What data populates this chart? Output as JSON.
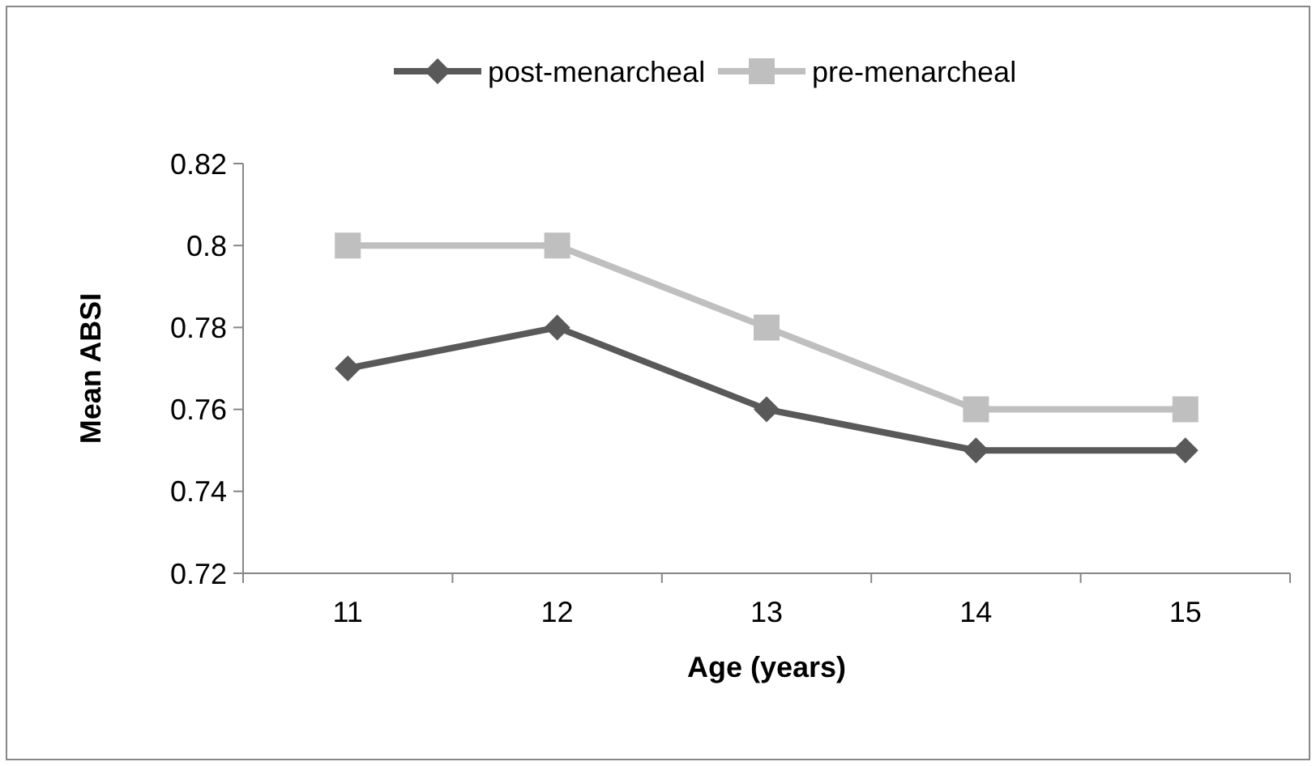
{
  "chart_data": {
    "type": "line",
    "xlabel": "Age (years)",
    "ylabel": "Mean ABSI",
    "categories": [
      "11",
      "12",
      "13",
      "14",
      "15"
    ],
    "series": [
      {
        "name": "post-menarcheal",
        "color": "#595959",
        "marker": "diamond",
        "values": [
          0.77,
          0.78,
          0.76,
          0.75,
          0.75
        ]
      },
      {
        "name": "pre-menarcheal",
        "color": "#bfbfbf",
        "marker": "square",
        "values": [
          0.8,
          0.8,
          0.78,
          0.76,
          0.76
        ]
      }
    ],
    "ylim": [
      0.72,
      0.82
    ],
    "yticks": [
      0.72,
      0.74,
      0.76,
      0.78,
      0.8,
      0.82
    ],
    "grid": false,
    "legend": "top"
  }
}
